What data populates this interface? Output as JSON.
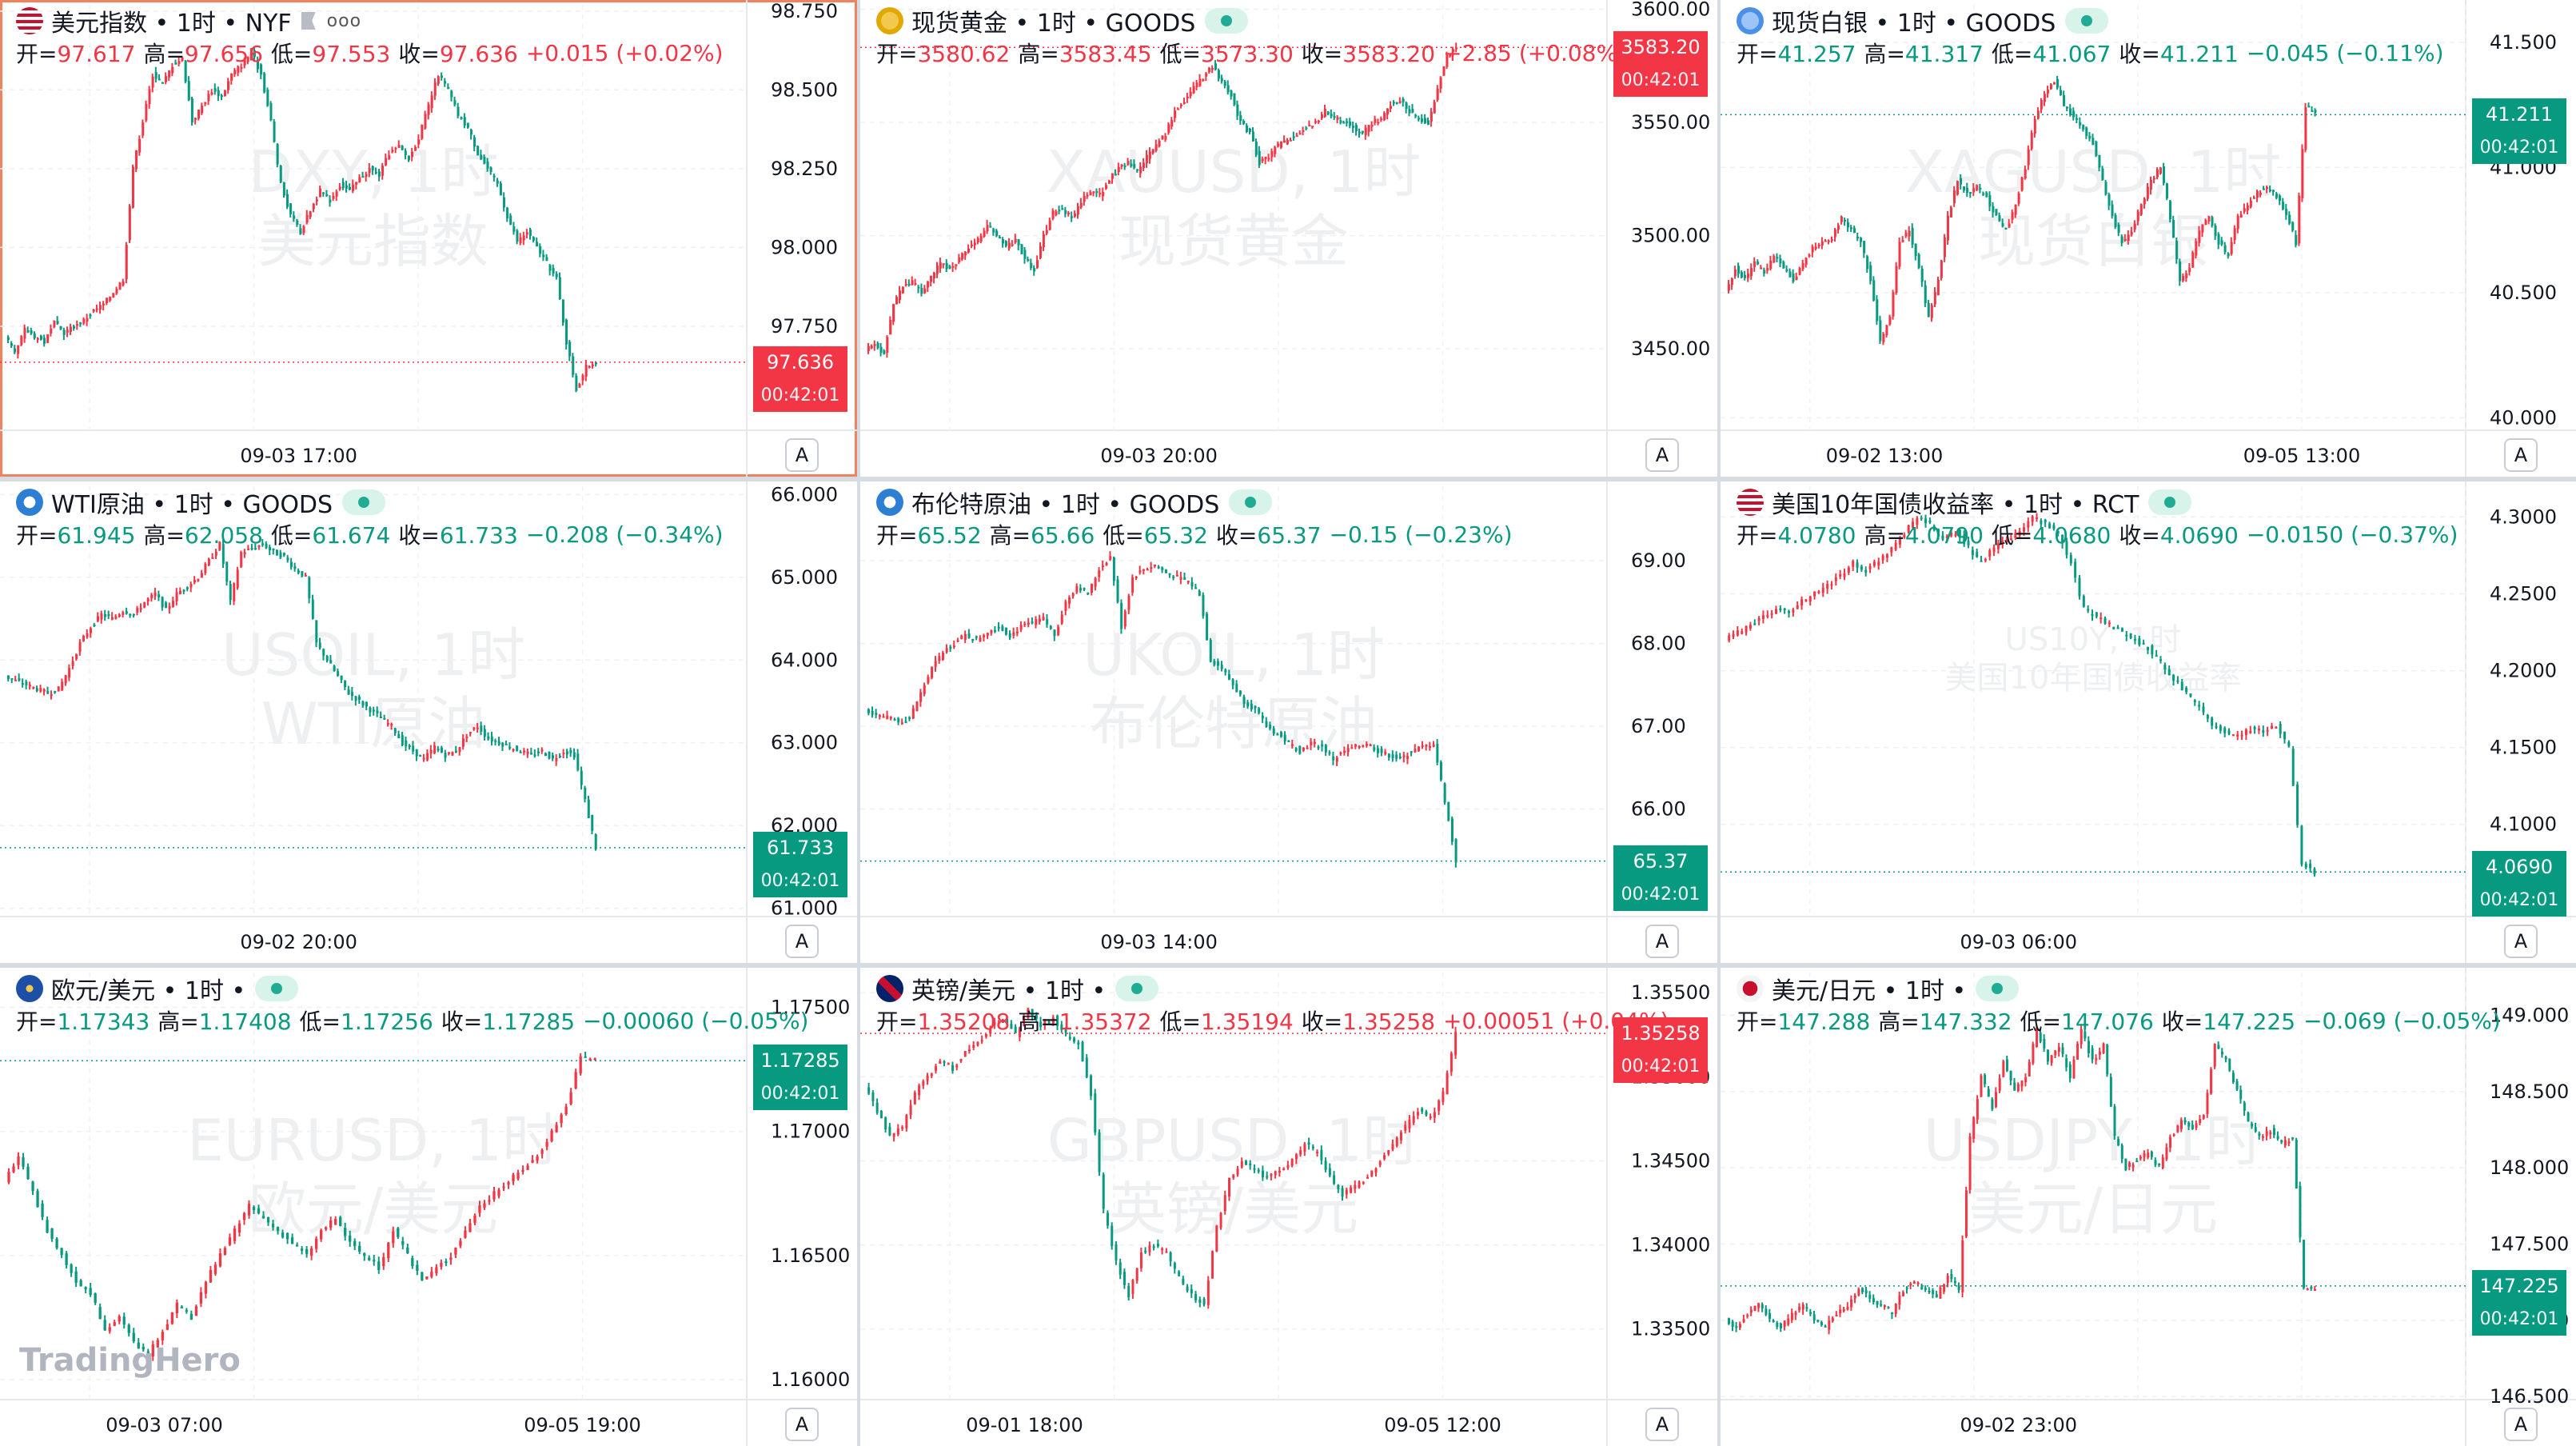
{
  "brand_logo": "TradingHero",
  "colors": {
    "up": "#f23645",
    "down": "#089981",
    "grid_dash": "#e8eaef",
    "active_border": "#f0825e"
  },
  "panels": [
    {
      "id": "dxy",
      "flag": "us-flag-icon",
      "title": "美元指数 • 1时 • NYF",
      "ohlc": {
        "open_label": "开=",
        "open": "97.617",
        "high_label": "高=",
        "high": "97.656",
        "low_label": "低=",
        "low": "97.553",
        "close_label": "收=",
        "close": "97.636",
        "change": "+0.015 (+0.02%)",
        "direction": "up"
      },
      "watermark": [
        "DXY, 1时",
        "美元指数"
      ],
      "price_tag": {
        "value": "97.636",
        "countdown": "00:42:01"
      },
      "x_labels": [
        "09-03 17:00"
      ],
      "active": true,
      "has_flag_button": true,
      "has_more_button": true,
      "chart_data": {
        "type": "candlestick",
        "yticks": [
          "98.750",
          "98.500",
          "98.250",
          "98.000",
          "97.750"
        ],
        "ylim": [
          97.42,
          98.77
        ],
        "last": 97.636,
        "series": [
          97.72,
          97.66,
          97.74,
          97.72,
          97.7,
          97.76,
          97.73,
          97.75,
          97.77,
          97.8,
          97.82,
          97.86,
          97.9,
          98.25,
          98.4,
          98.55,
          98.52,
          98.58,
          98.6,
          98.4,
          98.45,
          98.5,
          98.48,
          98.55,
          98.58,
          98.62,
          98.55,
          98.4,
          98.2,
          98.1,
          98.05,
          98.12,
          98.18,
          98.15,
          98.2,
          98.18,
          98.22,
          98.25,
          98.23,
          98.3,
          98.32,
          98.28,
          98.35,
          98.45,
          98.55,
          98.5,
          98.42,
          98.38,
          98.3,
          98.25,
          98.2,
          98.1,
          98.02,
          98.05,
          98.0,
          97.95,
          97.9,
          97.7,
          97.55,
          97.62,
          97.64
        ]
      }
    },
    {
      "id": "xau",
      "flag": "gold-icon",
      "title": "现货黄金 • 1时 • GOODS",
      "ohlc": {
        "open_label": "开=",
        "open": "3580.62",
        "high_label": "高=",
        "high": "3583.45",
        "low_label": "低=",
        "low": "3573.30",
        "close_label": "收=",
        "close": "3583.20",
        "change": "+2.85 (+0.08%)",
        "direction": "up"
      },
      "watermark": [
        "XAUUSD, 1时",
        "现货黄金"
      ],
      "price_tag": {
        "value": "3583.20",
        "countdown": "00:42:01"
      },
      "x_labels": [
        "09-03 20:00"
      ],
      "active": false,
      "chart_data": {
        "type": "candlestick",
        "yticks": [
          "3600.00",
          "3550.00",
          "3500.00",
          "3450.00"
        ],
        "ylim": [
          3414,
          3602
        ],
        "last": 3583.2,
        "series": [
          3450,
          3452,
          3448,
          3470,
          3478,
          3480,
          3475,
          3482,
          3488,
          3485,
          3490,
          3495,
          3498,
          3505,
          3500,
          3495,
          3498,
          3490,
          3485,
          3500,
          3510,
          3512,
          3508,
          3515,
          3520,
          3518,
          3525,
          3530,
          3532,
          3528,
          3535,
          3540,
          3545,
          3555,
          3560,
          3565,
          3570,
          3575,
          3568,
          3562,
          3550,
          3545,
          3532,
          3535,
          3540,
          3542,
          3545,
          3548,
          3550,
          3555,
          3552,
          3550,
          3548,
          3545,
          3550,
          3552,
          3558,
          3560,
          3555,
          3552,
          3550,
          3565,
          3580,
          3583
        ]
      }
    },
    {
      "id": "xag",
      "flag": "silver-icon",
      "title": "现货白银 • 1时 • GOODS",
      "ohlc": {
        "open_label": "开=",
        "open": "41.257",
        "high_label": "高=",
        "high": "41.317",
        "low_label": "低=",
        "low": "41.067",
        "close_label": "收=",
        "close": "41.211",
        "change": "−0.045 (−0.11%)",
        "direction": "down"
      },
      "watermark": [
        "XAGUSD, 1时",
        "现货白银"
      ],
      "price_tag": {
        "value": "41.211",
        "countdown": "00:42:01"
      },
      "x_labels": [
        "09-02 13:00",
        "09-05 13:00"
      ],
      "active": false,
      "chart_data": {
        "type": "candlestick",
        "yticks": [
          "41.500",
          "41.000",
          "40.500",
          "40.000"
        ],
        "ylim": [
          39.95,
          41.65
        ],
        "last": 41.211,
        "series": [
          40.5,
          40.6,
          40.55,
          40.62,
          40.58,
          40.65,
          40.6,
          40.55,
          40.62,
          40.68,
          40.7,
          40.72,
          40.8,
          40.75,
          40.7,
          40.55,
          40.3,
          40.4,
          40.7,
          40.75,
          40.6,
          40.4,
          40.55,
          40.8,
          40.95,
          40.9,
          40.92,
          40.88,
          40.8,
          40.75,
          40.85,
          41.0,
          41.2,
          41.3,
          41.35,
          41.25,
          41.2,
          41.15,
          41.1,
          40.95,
          40.8,
          40.7,
          40.75,
          40.85,
          40.95,
          41.0,
          40.8,
          40.55,
          40.6,
          40.75,
          40.8,
          40.7,
          40.65,
          40.8,
          40.85,
          40.9,
          40.92,
          40.88,
          40.82,
          40.7,
          41.25,
          41.21
        ]
      }
    },
    {
      "id": "wti",
      "flag": "oil-icon",
      "title": "WTI原油 • 1时 • GOODS",
      "ohlc": {
        "open_label": "开=",
        "open": "61.945",
        "high_label": "高=",
        "high": "62.058",
        "low_label": "低=",
        "low": "61.674",
        "close_label": "收=",
        "close": "61.733",
        "change": "−0.208 (−0.34%)",
        "direction": "down"
      },
      "watermark": [
        "USOIL, 1时",
        "WTI原油"
      ],
      "price_tag": {
        "value": "61.733",
        "countdown": "00:42:01"
      },
      "x_labels": [
        "09-02 20:00"
      ],
      "active": false,
      "chart_data": {
        "type": "candlestick",
        "yticks": [
          "66.000",
          "65.000",
          "64.000",
          "63.000",
          "62.000",
          "61.000"
        ],
        "ylim": [
          60.9,
          66.1
        ],
        "last": 61.733,
        "series": [
          63.8,
          63.75,
          63.7,
          63.65,
          63.6,
          63.65,
          63.9,
          64.2,
          64.4,
          64.55,
          64.5,
          64.6,
          64.55,
          64.7,
          64.8,
          64.6,
          64.8,
          64.9,
          65.0,
          65.2,
          65.4,
          64.7,
          65.3,
          65.35,
          65.4,
          65.3,
          65.25,
          65.1,
          65.0,
          64.2,
          64.0,
          63.8,
          63.6,
          63.5,
          63.4,
          63.3,
          63.2,
          63.0,
          62.9,
          62.8,
          62.95,
          62.85,
          62.9,
          63.1,
          63.2,
          63.05,
          63.0,
          62.95,
          62.9,
          62.85,
          62.9,
          62.8,
          62.9,
          62.85,
          62.3,
          61.73
        ]
      }
    },
    {
      "id": "brent",
      "flag": "oil-icon",
      "title": "布伦特原油 • 1时 • GOODS",
      "ohlc": {
        "open_label": "开=",
        "open": "65.52",
        "high_label": "高=",
        "high": "65.66",
        "low_label": "低=",
        "low": "65.32",
        "close_label": "收=",
        "close": "65.37",
        "change": "−0.15 (−0.23%)",
        "direction": "down"
      },
      "watermark": [
        "UKOIL, 1时",
        "布伦特原油"
      ],
      "price_tag": {
        "value": "65.37",
        "countdown": "00:42:01"
      },
      "x_labels": [
        "09-03 14:00"
      ],
      "active": false,
      "chart_data": {
        "type": "candlestick",
        "yticks": [
          "69.00",
          "68.00",
          "67.00",
          "66.00"
        ],
        "ylim": [
          64.7,
          69.9
        ],
        "last": 65.37,
        "series": [
          67.2,
          67.15,
          67.1,
          67.05,
          67.1,
          67.4,
          67.7,
          67.9,
          68.0,
          68.1,
          68.05,
          68.15,
          68.2,
          68.1,
          68.2,
          68.25,
          68.3,
          68.1,
          68.5,
          68.7,
          68.6,
          68.9,
          69.05,
          68.2,
          68.8,
          68.9,
          68.95,
          68.85,
          68.8,
          68.75,
          68.6,
          67.8,
          67.7,
          67.5,
          67.3,
          67.2,
          67.0,
          66.9,
          66.8,
          66.7,
          66.8,
          66.75,
          66.6,
          66.7,
          66.75,
          66.8,
          66.7,
          66.65,
          66.6,
          66.7,
          66.75,
          66.8,
          66.1,
          65.37
        ]
      }
    },
    {
      "id": "us10y",
      "flag": "us-flag-icon",
      "title": "美国10年国债收益率 • 1时 • RCT",
      "ohlc": {
        "open_label": "开=",
        "open": "4.0780",
        "high_label": "高=",
        "high": "4.0790",
        "low_label": "低=",
        "low": "4.0680",
        "close_label": "收=",
        "close": "4.0690",
        "change": "−0.0150 (−0.37%)",
        "direction": "down"
      },
      "watermark": [
        "US10Y, 1时",
        "美国10年国债收益率"
      ],
      "price_tag": {
        "value": "4.0690",
        "countdown": "00:42:01"
      },
      "x_labels": [
        "09-03 06:00"
      ],
      "active": false,
      "chart_data": {
        "type": "candlestick",
        "yticks": [
          "4.3000",
          "4.2500",
          "4.2000",
          "4.1500",
          "4.1000"
        ],
        "ylim": [
          4.04,
          4.32
        ],
        "last": 4.069,
        "series": [
          4.22,
          4.225,
          4.23,
          4.235,
          4.24,
          4.238,
          4.245,
          4.25,
          4.255,
          4.262,
          4.27,
          4.265,
          4.272,
          4.28,
          4.29,
          4.3,
          4.295,
          4.285,
          4.29,
          4.28,
          4.27,
          4.28,
          4.285,
          4.29,
          4.3,
          4.295,
          4.29,
          4.27,
          4.24,
          4.235,
          4.23,
          4.225,
          4.22,
          4.215,
          4.205,
          4.195,
          4.185,
          4.175,
          4.165,
          4.16,
          4.158,
          4.162,
          4.16,
          4.165,
          4.15,
          4.075,
          4.069
        ]
      }
    },
    {
      "id": "eurusd",
      "flag": "eu-flag-icon",
      "title": "欧元/美元 • 1时 •",
      "ohlc": {
        "open_label": "开=",
        "open": "1.17343",
        "high_label": "高=",
        "high": "1.17408",
        "low_label": "低=",
        "low": "1.17256",
        "close_label": "收=",
        "close": "1.17285",
        "change": "−0.00060 (−0.05%)",
        "direction": "down"
      },
      "watermark": [
        "EURUSD, 1时",
        "欧元/美元"
      ],
      "price_tag": {
        "value": "1.17285",
        "countdown": "00:42:01"
      },
      "x_labels": [
        "09-03 07:00",
        "09-05 19:00"
      ],
      "active": false,
      "chart_data": {
        "type": "candlestick",
        "yticks": [
          "1.17500",
          "1.17000",
          "1.16500",
          "1.16000"
        ],
        "ylim": [
          1.1592,
          1.1764
        ],
        "last": 1.17285,
        "series": [
          1.168,
          1.169,
          1.1675,
          1.166,
          1.165,
          1.164,
          1.1635,
          1.162,
          1.1625,
          1.1615,
          1.161,
          1.162,
          1.163,
          1.1625,
          1.164,
          1.165,
          1.166,
          1.167,
          1.1665,
          1.166,
          1.1655,
          1.165,
          1.166,
          1.1665,
          1.1655,
          1.165,
          1.1645,
          1.166,
          1.165,
          1.164,
          1.1645,
          1.165,
          1.166,
          1.167,
          1.1675,
          1.168,
          1.1685,
          1.169,
          1.17,
          1.171,
          1.173,
          1.1729
        ]
      }
    },
    {
      "id": "gbpusd",
      "flag": "uk-flag-icon",
      "title": "英镑/美元 • 1时 •",
      "ohlc": {
        "open_label": "开=",
        "open": "1.35208",
        "high_label": "高=",
        "high": "1.35372",
        "low_label": "低=",
        "low": "1.35194",
        "close_label": "收=",
        "close": "1.35258",
        "change": "+0.00051 (+0.04%)",
        "direction": "up"
      },
      "watermark": [
        "GBPUSD, 1时",
        "英镑/美元"
      ],
      "price_tag": {
        "value": "1.35258",
        "countdown": "00:42:01"
      },
      "x_labels": [
        "09-01 18:00",
        "09-05 12:00"
      ],
      "active": false,
      "chart_data": {
        "type": "candlestick",
        "yticks": [
          "1.35500",
          "1.35000",
          "1.34500",
          "1.34000",
          "1.33500"
        ],
        "ylim": [
          1.3308,
          1.3562
        ],
        "last": 1.35258,
        "series": [
          1.3495,
          1.348,
          1.3465,
          1.347,
          1.349,
          1.35,
          1.351,
          1.3505,
          1.3515,
          1.352,
          1.353,
          1.3535,
          1.3525,
          1.354,
          1.353,
          1.3535,
          1.3525,
          1.352,
          1.349,
          1.342,
          1.339,
          1.337,
          1.3395,
          1.34,
          1.3395,
          1.338,
          1.337,
          1.3365,
          1.341,
          1.344,
          1.345,
          1.3445,
          1.344,
          1.3445,
          1.345,
          1.346,
          1.3455,
          1.344,
          1.343,
          1.3435,
          1.344,
          1.345,
          1.346,
          1.347,
          1.348,
          1.3475,
          1.349,
          1.3526
        ]
      }
    },
    {
      "id": "usdjpy",
      "flag": "jp-flag-icon",
      "title": "美元/日元 • 1时 •",
      "ohlc": {
        "open_label": "开=",
        "open": "147.288",
        "high_label": "高=",
        "high": "147.332",
        "low_label": "低=",
        "low": "147.076",
        "close_label": "收=",
        "close": "147.225",
        "change": "−0.069 (−0.05%)",
        "direction": "down"
      },
      "watermark": [
        "USDJPY, 1时",
        "美元/日元"
      ],
      "price_tag": {
        "value": "147.225",
        "countdown": "00:42:01"
      },
      "x_labels": [
        "09-02 23:00"
      ],
      "active": false,
      "chart_data": {
        "type": "candlestick",
        "yticks": [
          "149.000",
          "148.500",
          "148.000",
          "147.500",
          "147.000",
          "146.500"
        ],
        "ylim": [
          146.48,
          149.28
        ],
        "last": 147.225,
        "series": [
          147.0,
          146.95,
          147.05,
          147.1,
          147.0,
          146.95,
          147.05,
          147.1,
          147.0,
          146.95,
          147.05,
          147.1,
          147.2,
          147.15,
          147.1,
          147.05,
          147.2,
          147.25,
          147.2,
          147.15,
          147.3,
          147.2,
          148.2,
          148.6,
          148.4,
          148.7,
          148.5,
          148.6,
          148.9,
          148.7,
          148.8,
          148.6,
          148.9,
          148.7,
          148.8,
          148.2,
          148.0,
          148.05,
          148.1,
          148.0,
          148.2,
          148.3,
          148.25,
          148.35,
          148.8,
          148.7,
          148.5,
          148.3,
          148.2,
          148.25,
          148.15,
          148.2,
          147.2,
          147.22
        ]
      }
    }
  ]
}
